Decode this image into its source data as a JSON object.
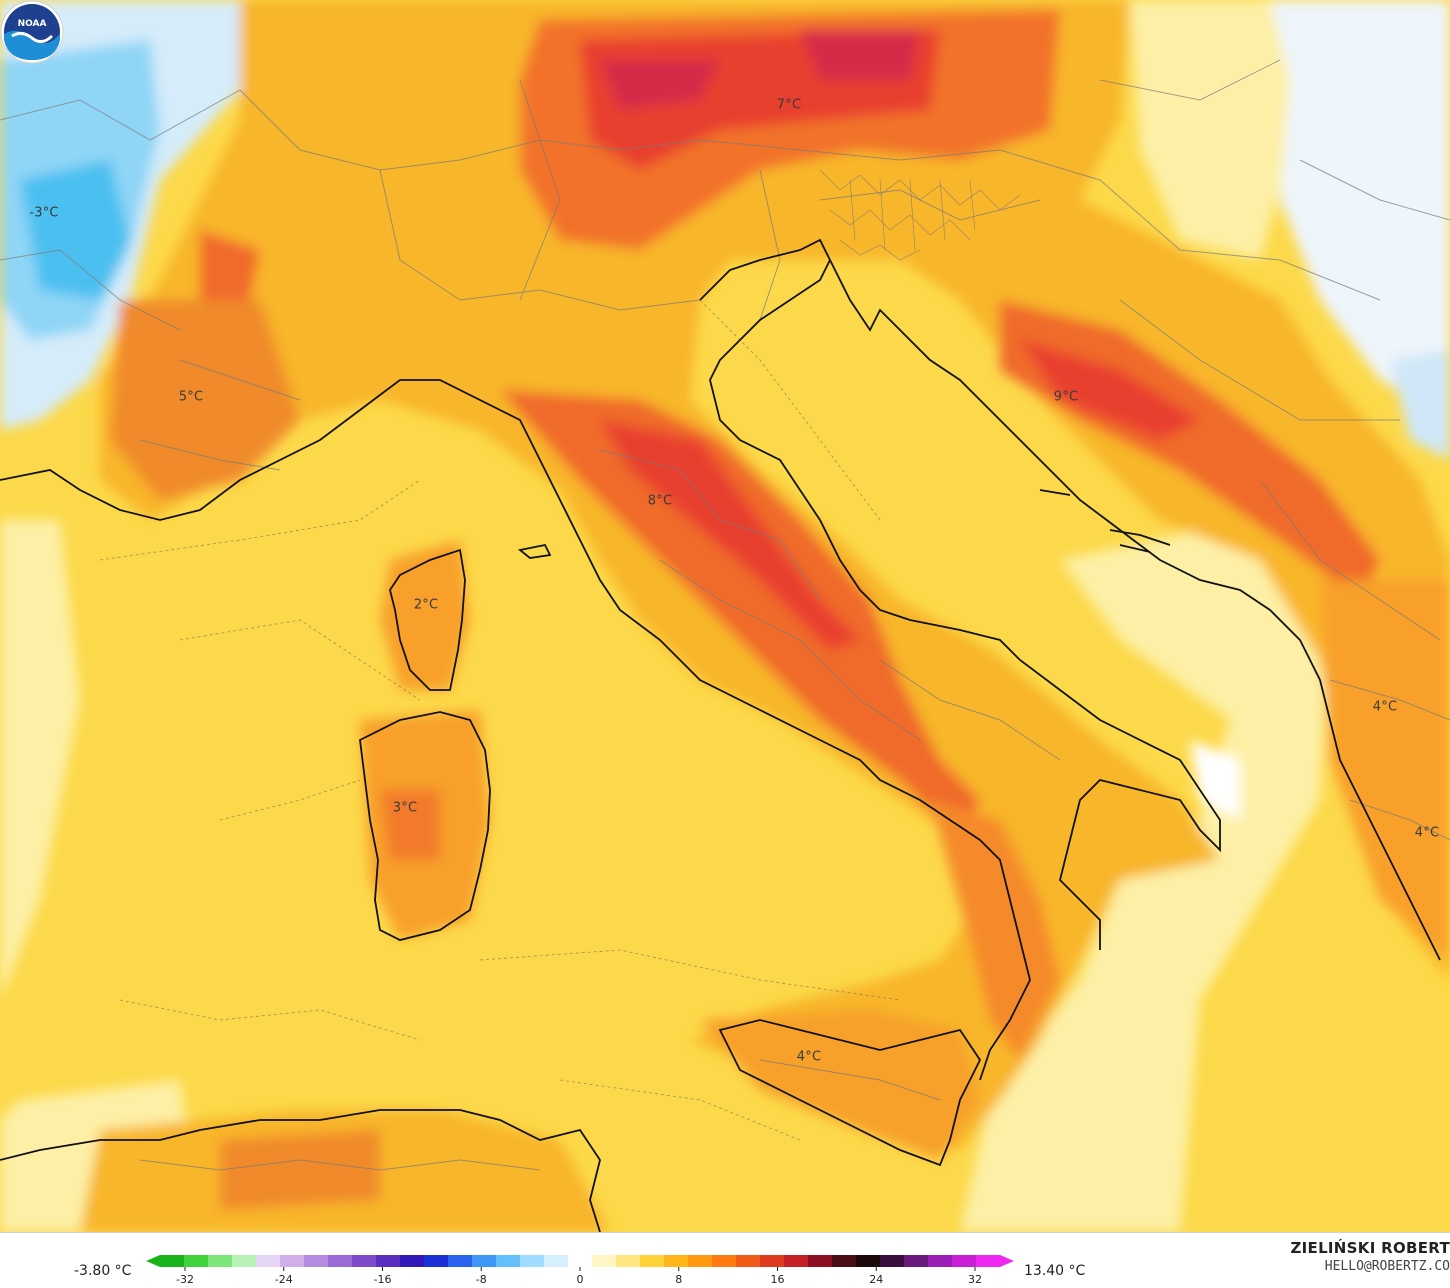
{
  "map": {
    "region": "Italy and surroundings",
    "variable": "2m temperature",
    "temperature_labels": [
      {
        "text": "-3°C",
        "id": "label-west-alps"
      },
      {
        "text": "7°C",
        "id": "label-austria"
      },
      {
        "text": "5°C",
        "id": "label-provence"
      },
      {
        "text": "9°C",
        "id": "label-bosnia"
      },
      {
        "text": "8°C",
        "id": "label-central-apennines"
      },
      {
        "text": "2°C",
        "id": "label-corsica"
      },
      {
        "text": "3°C",
        "id": "label-sardinia"
      },
      {
        "text": "4°C",
        "id": "label-albania"
      },
      {
        "text": "4°C",
        "id": "label-greece"
      },
      {
        "text": "4°C",
        "id": "label-sicily"
      }
    ],
    "colors": {
      "cold_blue": "#5bc8f0",
      "cool_light": "#e8f2fb",
      "mild_yellow": "#fcd94a",
      "pale_yellow": "#fdf3b5",
      "warm_orange": "#f7a51e",
      "hot_orange": "#f26b1e",
      "hot_red": "#e0362a",
      "peak_magenta": "#d42a4a"
    }
  },
  "legend": {
    "min_label": "-3.80 °C",
    "max_label": "13.40 °C",
    "ticks": [
      "-32",
      "-24",
      "-16",
      "-8",
      "0",
      "8",
      "16",
      "24",
      "32"
    ],
    "scale_colors": [
      "#19b31b",
      "#3fd23a",
      "#7de67a",
      "#b8f2b5",
      "#e6d5f5",
      "#cfaeea",
      "#b48be0",
      "#9a6bd6",
      "#7d4ac9",
      "#5a2fbf",
      "#3218b6",
      "#1a2fd6",
      "#2a64ee",
      "#3f97f5",
      "#63c0fb",
      "#9fdcfd",
      "#d6f0fe",
      "#ffffff",
      "#fff6c4",
      "#ffe680",
      "#ffd23a",
      "#ffb619",
      "#ff9a10",
      "#ff7a10",
      "#f25a18",
      "#de3b1f",
      "#c42026",
      "#8c1021",
      "#4b0d14",
      "#1a0a0a",
      "#3a0f3d",
      "#6a1a7d",
      "#9a1fb7",
      "#c81fd6",
      "#ee2af0"
    ]
  },
  "credits": {
    "author": "ZIELIŃSKI ROBERT",
    "email": "HELLO@ROBERTZ.CO",
    "logo_text": "NOAA"
  }
}
